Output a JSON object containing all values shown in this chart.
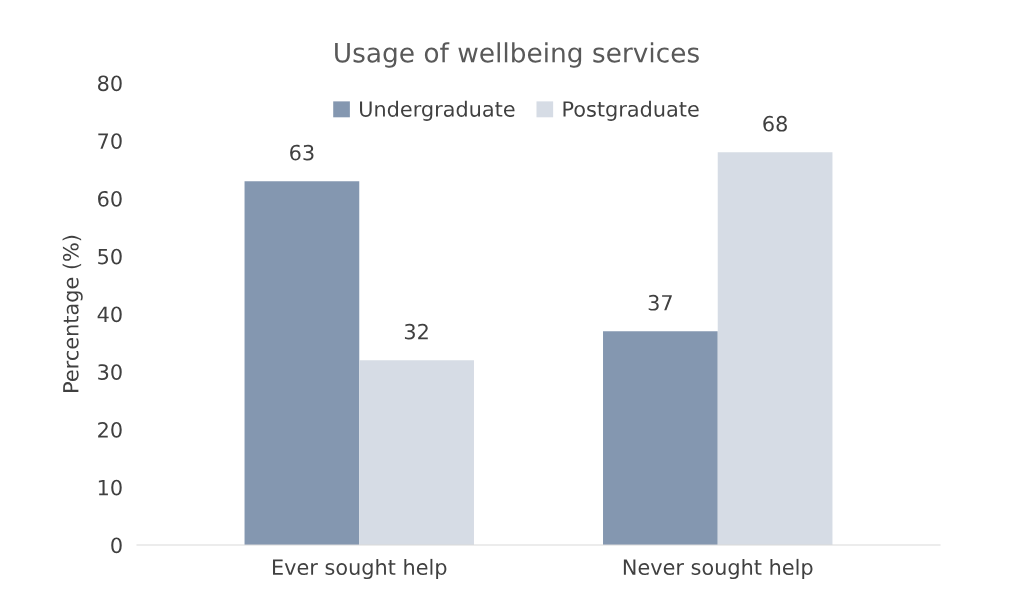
{
  "chart_data": {
    "type": "bar",
    "title": "Usage of wellbeing services",
    "ylabel": "Percentage (%)",
    "categories": [
      "Ever sought help",
      "Never sought help"
    ],
    "series": [
      {
        "name": "Undergraduate",
        "color": "#8497b0",
        "values": [
          63,
          37
        ]
      },
      {
        "name": "Postgraduate",
        "color": "#d6dce5",
        "values": [
          32,
          68
        ]
      }
    ],
    "ylim": [
      0,
      80
    ],
    "yticks": [
      0,
      10,
      20,
      30,
      40,
      50,
      60,
      70,
      80
    ],
    "grid": false,
    "legend": "top",
    "data_labels": true
  }
}
